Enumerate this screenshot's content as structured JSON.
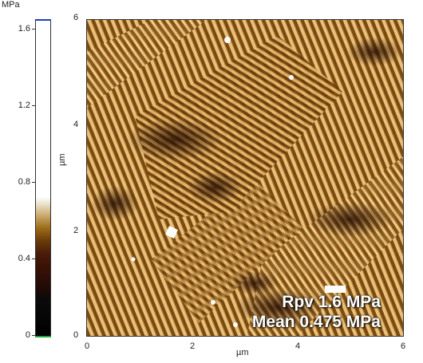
{
  "colorbar": {
    "unit": "MPa",
    "ticks": [
      "1.6",
      "1.2",
      "0.8",
      "0.4",
      "0"
    ],
    "colors": {
      "top": "#ffffff",
      "mid": "#9a6a18",
      "dark": "#3a1206",
      "bottom": "#000000",
      "top_marker": "#1c3fbf",
      "bottom_marker": "#1aa63a"
    }
  },
  "axes": {
    "y_ticks": [
      "6",
      "4",
      "2",
      "0"
    ],
    "x_ticks": [
      "0",
      "2",
      "4",
      "6"
    ],
    "y_unit": "µm",
    "x_unit": "µm"
  },
  "overlay": {
    "line1": "Rpv 1.6 MPa",
    "line2": "Mean 0.475 MPa"
  }
}
